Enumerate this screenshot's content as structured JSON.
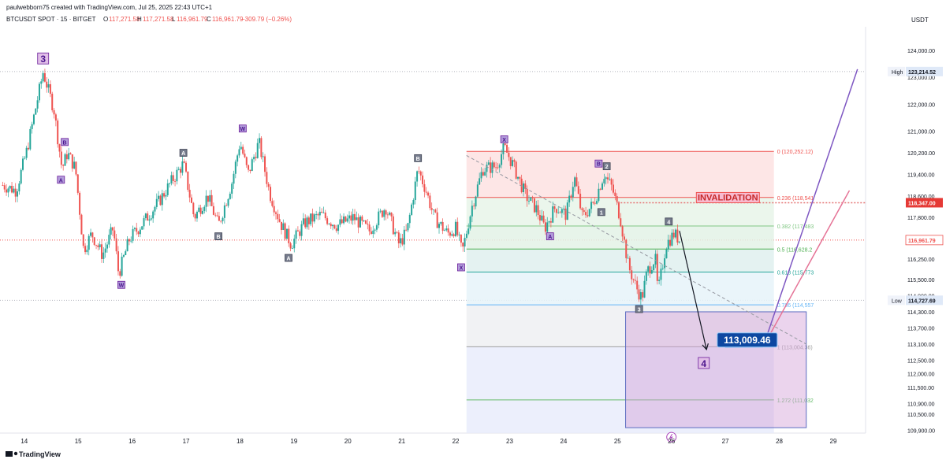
{
  "header": {
    "attribution": "paulwebborn75 created with TradingView.com, Jul 25, 2025 22:43 UTC+1",
    "symbol": "BTCUSDT SPOT · 15 · BITGET",
    "open_label": "O",
    "open": "117,271.58",
    "high_label": "H",
    "high": "117,271.58",
    "low_label": "L",
    "low": "116,961.79",
    "close_label": "C",
    "close": "116,961.79",
    "change": "−309.79 (−0.26%)",
    "currency": "USDT"
  },
  "footer": {
    "brand": "TradingView"
  },
  "colors": {
    "bull": "#26a69a",
    "bear": "#ef5350",
    "wave_label_purple": "#b39ddb",
    "wave_label_gray": "#757b8c",
    "target_badge": "#0d47a1",
    "invalidation": "#e57373",
    "path_purple": "#7e57c2",
    "path_pink": "#e57396"
  },
  "chart_data": {
    "type": "candlestick",
    "ylim": [
      109800,
      124700
    ],
    "y_ticks": [
      "124,000.00",
      "123,000.00",
      "122,000.00",
      "121,000.00",
      "120,200.00",
      "119,400.00",
      "118,600.00",
      "117,800.00",
      "116,250.00",
      "115,500.00",
      "114,900.00",
      "114,300.00",
      "113,700.00",
      "113,100.00",
      "112,500.00",
      "112,000.00",
      "111,500.00",
      "110,900.00",
      "110,500.00",
      "109,900.00"
    ],
    "y_tick_values": [
      124000,
      123000,
      122000,
      121000,
      120200,
      119400,
      118600,
      117800,
      116250,
      115500,
      114900,
      114300,
      113700,
      113100,
      112500,
      112000,
      111500,
      110900,
      110500,
      109900
    ],
    "x_ticks": [
      "14",
      "15",
      "16",
      "17",
      "18",
      "19",
      "20",
      "21",
      "22",
      "23",
      "24",
      "25",
      "26",
      "27",
      "28",
      "29"
    ],
    "x_tick_values": [
      14,
      15,
      16,
      17,
      18,
      19,
      20,
      21,
      22,
      23,
      24,
      25,
      26,
      27,
      28,
      29
    ],
    "xlim": [
      13.55,
      29.6
    ],
    "price_path": [
      [
        13.6,
        119000
      ],
      [
        13.85,
        118800
      ],
      [
        14.05,
        120300
      ],
      [
        14.35,
        123200
      ],
      [
        14.55,
        121800
      ],
      [
        14.7,
        119600
      ],
      [
        14.8,
        120200
      ],
      [
        14.95,
        119600
      ],
      [
        15.1,
        116600
      ],
      [
        15.25,
        117200
      ],
      [
        15.45,
        116400
      ],
      [
        15.65,
        117400
      ],
      [
        15.75,
        115700
      ],
      [
        15.95,
        117000
      ],
      [
        16.2,
        117600
      ],
      [
        16.5,
        118400
      ],
      [
        16.75,
        119200
      ],
      [
        16.95,
        119800
      ],
      [
        17.15,
        117800
      ],
      [
        17.4,
        118600
      ],
      [
        17.6,
        117500
      ],
      [
        17.85,
        119100
      ],
      [
        18.0,
        120600
      ],
      [
        18.15,
        119400
      ],
      [
        18.35,
        120600
      ],
      [
        18.55,
        118700
      ],
      [
        18.75,
        117600
      ],
      [
        18.95,
        116800
      ],
      [
        19.2,
        117600
      ],
      [
        19.5,
        117900
      ],
      [
        19.8,
        117500
      ],
      [
        20.1,
        117800
      ],
      [
        20.4,
        117300
      ],
      [
        20.7,
        118200
      ],
      [
        20.95,
        116800
      ],
      [
        21.1,
        117300
      ],
      [
        21.3,
        119600
      ],
      [
        21.45,
        118800
      ],
      [
        21.6,
        117800
      ],
      [
        21.85,
        117200
      ],
      [
        22.0,
        117400
      ],
      [
        22.12,
        116500
      ],
      [
        22.3,
        118200
      ],
      [
        22.5,
        119600
      ],
      [
        22.75,
        119700
      ],
      [
        22.9,
        120400
      ],
      [
        23.05,
        119800
      ],
      [
        23.3,
        118600
      ],
      [
        23.5,
        118100
      ],
      [
        23.65,
        117400
      ],
      [
        23.85,
        118200
      ],
      [
        24.05,
        117900
      ],
      [
        24.2,
        119300
      ],
      [
        24.35,
        117800
      ],
      [
        24.55,
        118300
      ],
      [
        24.75,
        119400
      ],
      [
        24.9,
        118900
      ],
      [
        25.05,
        117800
      ],
      [
        25.2,
        116000
      ],
      [
        25.35,
        115200
      ],
      [
        25.45,
        114800
      ],
      [
        25.55,
        115800
      ],
      [
        25.7,
        116300
      ],
      [
        25.75,
        115000
      ],
      [
        25.9,
        116800
      ],
      [
        26.05,
        117200
      ],
      [
        26.15,
        116960
      ]
    ],
    "price_tags": [
      {
        "label": "High",
        "value": "123,214.52",
        "y": 123214.52,
        "style": "extreme"
      },
      {
        "label": "",
        "value": "118,347.00",
        "y": 118347,
        "style": "invalidation"
      },
      {
        "label": "",
        "value": "116,961.79",
        "y": 116961.79,
        "style": "last"
      },
      {
        "label": "Low",
        "value": "114,727.69",
        "y": 114727.69,
        "style": "extreme"
      }
    ],
    "fib_levels": [
      {
        "label": "0 (120,252.12)",
        "value": 120252.12,
        "color": "#ef5350"
      },
      {
        "label": "0.236 (118,541",
        "value": 118541,
        "color": "#ef5350"
      },
      {
        "label": "0.382 (117,483",
        "value": 117483,
        "color": "#81c784"
      },
      {
        "label": "0.5 (116,628.2",
        "value": 116628.2,
        "color": "#4caf50"
      },
      {
        "label": "0.618 (115,773",
        "value": 115773,
        "color": "#26a69a"
      },
      {
        "label": "0.786 (114,557",
        "value": 114557,
        "color": "#64b5f6"
      },
      {
        "label": "1 (113,004.36)",
        "value": 113004.36,
        "color": "#9e9e9e"
      },
      {
        "label": "1.272 (111,032",
        "value": 111032,
        "color": "#66bb6a"
      }
    ],
    "fib_range": {
      "x_start": 22.2,
      "x_end": 27.9,
      "bottom": 109800
    },
    "target_box": {
      "x_start": 25.15,
      "x_end": 28.5,
      "top": 114300,
      "bottom": 110000
    },
    "invalidation": {
      "text": "INVALIDATION",
      "value": 118347,
      "x_start": 25.0,
      "x_end": 28.0
    },
    "target_badge": {
      "text": "113,009.46",
      "x": 26.85,
      "y": 113400
    },
    "wave_labels": [
      {
        "text": "3",
        "x": 14.35,
        "y": 123700,
        "style": "big"
      },
      {
        "text": "B",
        "x": 14.75,
        "y": 120600,
        "style": "purple"
      },
      {
        "text": "A",
        "x": 14.68,
        "y": 119200,
        "style": "purple"
      },
      {
        "text": "W",
        "x": 15.8,
        "y": 115300,
        "style": "purple"
      },
      {
        "text": "A",
        "x": 16.95,
        "y": 120200,
        "style": "gray"
      },
      {
        "text": "B",
        "x": 17.6,
        "y": 117100,
        "style": "gray"
      },
      {
        "text": "W",
        "x": 18.05,
        "y": 121100,
        "style": "purple"
      },
      {
        "text": "A",
        "x": 18.9,
        "y": 116300,
        "style": "gray"
      },
      {
        "text": "B",
        "x": 21.3,
        "y": 120000,
        "style": "gray"
      },
      {
        "text": "X",
        "x": 22.1,
        "y": 115950,
        "style": "purple"
      },
      {
        "text": "X",
        "x": 22.9,
        "y": 120700,
        "style": "purple"
      },
      {
        "text": "A",
        "x": 23.75,
        "y": 117100,
        "style": "purple"
      },
      {
        "text": "B",
        "x": 24.65,
        "y": 119800,
        "style": "purple"
      },
      {
        "text": "2",
        "x": 24.8,
        "y": 119700,
        "style": "gray"
      },
      {
        "text": "1",
        "x": 24.7,
        "y": 118000,
        "style": "gray"
      },
      {
        "text": "3",
        "x": 25.4,
        "y": 114400,
        "style": "gray"
      },
      {
        "text": "4",
        "x": 25.95,
        "y": 117650,
        "style": "gray"
      },
      {
        "text": "4",
        "x": 26.6,
        "y": 112400,
        "style": "big"
      }
    ],
    "trend_line": {
      "from": [
        22.2,
        120100
      ],
      "to": [
        28.5,
        113100
      ]
    },
    "down_arrow": {
      "from": [
        26.15,
        117300
      ],
      "to": [
        26.65,
        112900
      ]
    },
    "path_lines": [
      {
        "from": [
          27.7,
          113000
        ],
        "to": [
          29.45,
          123300
        ],
        "color": "#7e57c2"
      },
      {
        "from": [
          27.7,
          113000
        ],
        "to": [
          29.3,
          118800
        ],
        "color": "#e57396"
      }
    ],
    "lightning_marker": {
      "x": 26.0,
      "y": 109650
    }
  }
}
